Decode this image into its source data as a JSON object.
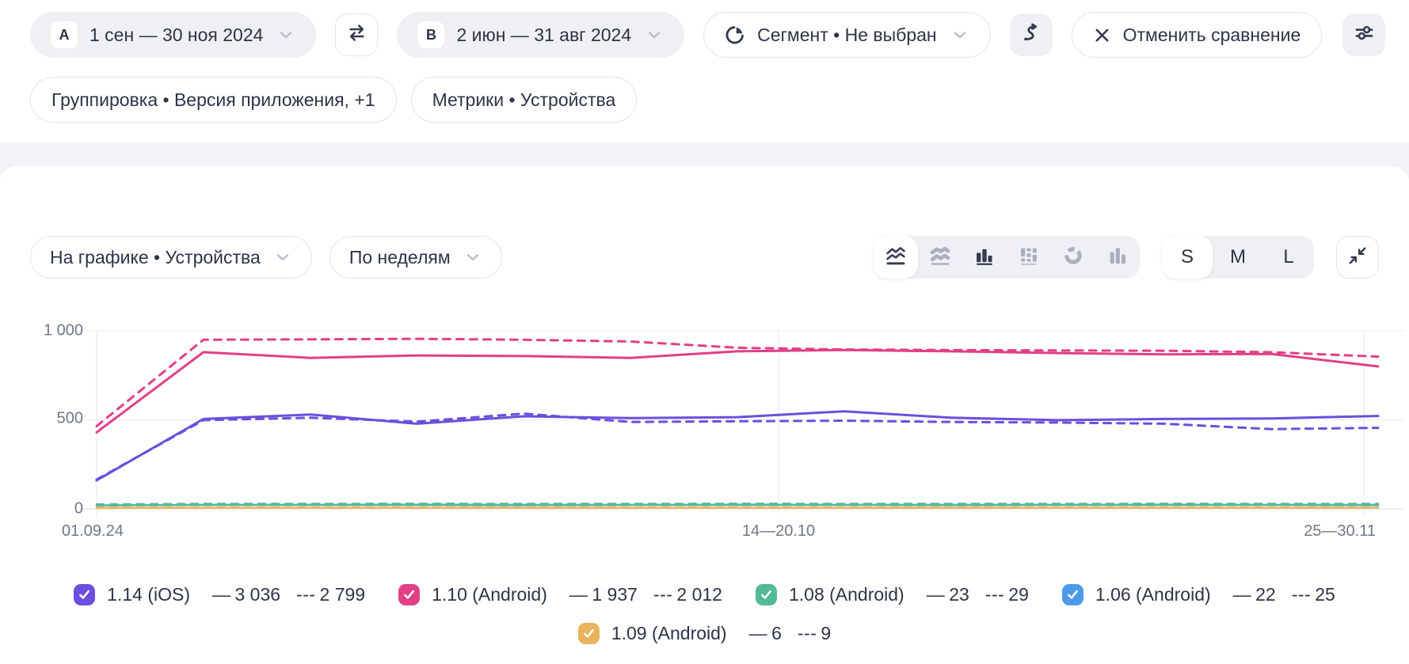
{
  "toolbar": {
    "period_a": {
      "badge": "A",
      "label": "1 сен — 30 ноя 2024"
    },
    "period_b": {
      "badge": "B",
      "label": "2 июн — 31 авг 2024"
    },
    "segment_label": "Сегмент • Не выбран",
    "cancel_comparison": "Отменить сравнение"
  },
  "filters": {
    "grouping": "Группировка • Версия приложения, +1",
    "metrics": "Метрики • Устройства"
  },
  "chart_controls": {
    "on_chart": "На графике • Устройства",
    "granularity": "По неделям",
    "chart_types": [
      "line",
      "stacked-area",
      "bars",
      "stacked-bars",
      "donut",
      "histogram"
    ],
    "active_chart_type": "line",
    "sizes": [
      "S",
      "M",
      "L"
    ],
    "active_size": "S"
  },
  "chart_data": {
    "type": "line",
    "comparison": true,
    "x_axis": {
      "labels": [
        "01.09.24",
        "14—20.10",
        "25—30.11"
      ]
    },
    "y_axis": {
      "max": 1000,
      "ticks": [
        1000,
        500,
        0
      ],
      "tick_labels": [
        "1 000",
        "500",
        "0"
      ]
    },
    "legend": {
      "marker_solid": "—",
      "marker_dashed": "---"
    },
    "series": [
      {
        "name": "1.14 (iOS)",
        "color": "#6b4fdd",
        "a_total": "3 036",
        "b_total": "2 799",
        "a": [
          160,
          505,
          530,
          478,
          520,
          510,
          515,
          548,
          512,
          498,
          505,
          508,
          522
        ],
        "b": [
          165,
          498,
          512,
          490,
          535,
          488,
          492,
          495,
          488,
          485,
          478,
          448,
          455
        ]
      },
      {
        "name": "1.10 (Android)",
        "color": "#e23f85",
        "a_total": "1 937",
        "b_total": "2 012",
        "a": [
          430,
          880,
          848,
          862,
          858,
          848,
          885,
          892,
          885,
          875,
          868,
          870,
          800
        ],
        "b": [
          465,
          950,
          952,
          955,
          950,
          940,
          905,
          895,
          892,
          890,
          888,
          880,
          855
        ]
      },
      {
        "name": "1.08 (Android)",
        "color": "#53ba98",
        "a_total": "23",
        "b_total": "29",
        "a": [
          20,
          23,
          23,
          24,
          23,
          23,
          24,
          23,
          23,
          23,
          24,
          23,
          23
        ],
        "b": [
          26,
          29,
          29,
          30,
          29,
          29,
          30,
          29,
          29,
          29,
          30,
          29,
          29
        ]
      },
      {
        "name": "1.06 (Android)",
        "color": "#4d9be8",
        "a_total": "22",
        "b_total": "25",
        "a": [
          19,
          22,
          22,
          22,
          21,
          22,
          22,
          22,
          21,
          22,
          22,
          22,
          21
        ],
        "b": [
          23,
          25,
          25,
          26,
          25,
          25,
          26,
          25,
          25,
          25,
          26,
          25,
          25
        ]
      },
      {
        "name": "1.09 (Android)",
        "color": "#ebb45c",
        "a_total": "6",
        "b_total": "9",
        "a": [
          5,
          6,
          6,
          6,
          6,
          6,
          6,
          6,
          6,
          6,
          6,
          6,
          6
        ],
        "b": [
          8,
          9,
          9,
          9,
          9,
          9,
          9,
          9,
          9,
          9,
          9,
          9,
          9
        ]
      }
    ]
  }
}
